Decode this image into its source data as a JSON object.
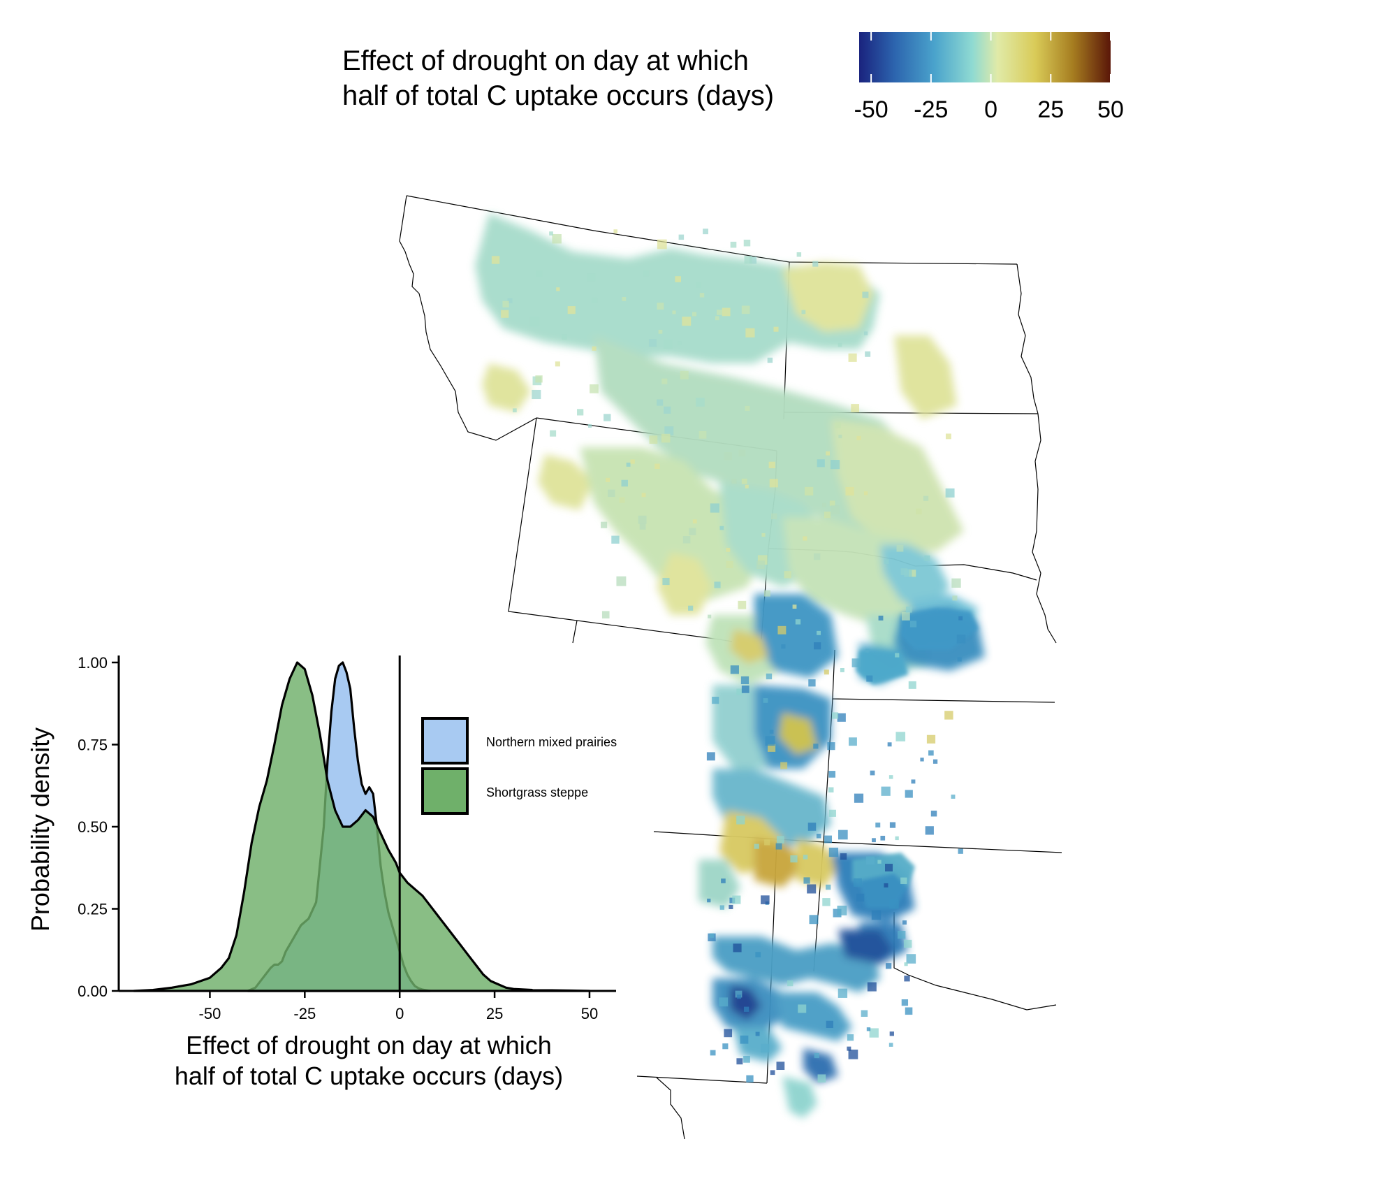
{
  "colorbar": {
    "title_line1": "Effect of drought on day at which",
    "title_line2": "half of total C uptake occurs (days)",
    "range": [
      -55,
      50
    ],
    "ticks": [
      {
        "value": -50,
        "label": "-50"
      },
      {
        "value": -25,
        "label": "-25"
      },
      {
        "value": 0,
        "label": "0"
      },
      {
        "value": 25,
        "label": "25"
      },
      {
        "value": 50,
        "label": "50"
      }
    ],
    "palette": [
      "#1a237e",
      "#2c64ae",
      "#4aa3cc",
      "#8fdad2",
      "#e0eaa8",
      "#d9cb58",
      "#a67d20",
      "#5a1608"
    ]
  },
  "map": {
    "description_colors": {
      "north": "#a8dcc8",
      "north_yellow": "#dfe39a",
      "central": "#b7dcbc",
      "south_blue": "#3a8fc0",
      "south_dark": "#1f4f9a",
      "hotspot": "#c7a63a",
      "hotspot_dark": "#7a2e10"
    }
  },
  "chart_data": {
    "type": "area",
    "title": "",
    "xlabel_line1": "Effect of drought on day at which",
    "xlabel_line2": "half of total C uptake occurs (days)",
    "ylabel": "Probability density",
    "xlim": [
      -74,
      57
    ],
    "ylim": [
      0,
      1.0
    ],
    "x_ticks": [
      {
        "value": -50,
        "label": "-50"
      },
      {
        "value": -25,
        "label": "-25"
      },
      {
        "value": 0,
        "label": "0"
      },
      {
        "value": 25,
        "label": "25"
      },
      {
        "value": 50,
        "label": "50"
      }
    ],
    "y_ticks": [
      {
        "value": 0,
        "label": "0.00"
      },
      {
        "value": 0.25,
        "label": "0.25"
      },
      {
        "value": 0.5,
        "label": "0.50"
      },
      {
        "value": 0.75,
        "label": "0.75"
      },
      {
        "value": 1.0,
        "label": "1.00"
      }
    ],
    "vline_x": 0,
    "legend_position": "upper-right",
    "series": [
      {
        "name": "Northern mixed prairies",
        "color": "#a8caf2",
        "x": [
          -40,
          -38,
          -36,
          -34,
          -33,
          -32,
          -31,
          -30,
          -28,
          -26,
          -24,
          -22,
          -20,
          -19,
          -18,
          -17,
          -16,
          -15,
          -14,
          -13,
          -12,
          -11,
          -10,
          -9,
          -8,
          -7,
          -6,
          -5,
          -4,
          -3,
          -2,
          -1,
          0,
          1,
          2,
          3,
          4,
          5,
          6,
          7,
          8
        ],
        "y": [
          0,
          0.01,
          0.04,
          0.07,
          0.08,
          0.08,
          0.09,
          0.12,
          0.16,
          0.2,
          0.22,
          0.27,
          0.5,
          0.7,
          0.85,
          0.95,
          0.99,
          1.0,
          0.97,
          0.92,
          0.8,
          0.7,
          0.63,
          0.6,
          0.62,
          0.6,
          0.5,
          0.38,
          0.3,
          0.24,
          0.2,
          0.16,
          0.12,
          0.08,
          0.05,
          0.03,
          0.015,
          0.008,
          0.004,
          0.002,
          0
        ]
      },
      {
        "name": "Shortgrass steppe",
        "color": "#6fb06a",
        "x": [
          -70,
          -65,
          -60,
          -55,
          -50,
          -47,
          -45,
          -43,
          -41,
          -39,
          -37,
          -35,
          -33,
          -31,
          -29,
          -27,
          -25,
          -23,
          -21,
          -19,
          -17,
          -15,
          -13,
          -11,
          -9,
          -7,
          -5,
          -3,
          -1,
          0,
          2,
          4,
          6,
          8,
          10,
          12,
          14,
          16,
          18,
          20,
          22,
          24,
          26,
          28,
          30,
          35,
          40,
          45,
          50
        ],
        "y": [
          0,
          0.003,
          0.01,
          0.02,
          0.04,
          0.07,
          0.1,
          0.17,
          0.3,
          0.45,
          0.56,
          0.64,
          0.75,
          0.87,
          0.95,
          1.0,
          0.98,
          0.9,
          0.78,
          0.64,
          0.55,
          0.5,
          0.5,
          0.52,
          0.55,
          0.53,
          0.48,
          0.43,
          0.39,
          0.36,
          0.33,
          0.31,
          0.29,
          0.26,
          0.23,
          0.2,
          0.17,
          0.14,
          0.11,
          0.08,
          0.05,
          0.03,
          0.02,
          0.01,
          0.006,
          0.003,
          0.002,
          0.001,
          0
        ]
      }
    ]
  }
}
